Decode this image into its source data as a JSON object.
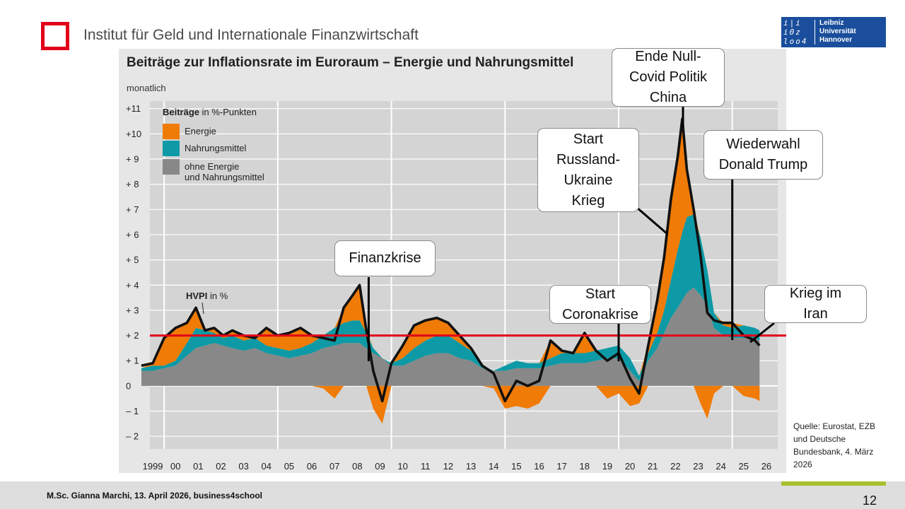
{
  "header": {
    "institute": "Institut für Geld und Internationale Finanzwirtschaft",
    "university_logo": {
      "line1": "Leibniz",
      "line2": "Universität",
      "line3": "Hannover"
    }
  },
  "colors": {
    "energy": "#f07b06",
    "food": "#0d9aa6",
    "core": "#888888",
    "hvpi": "#111111",
    "target_line": "#e2001a",
    "plot_bg": "#d4d4d4",
    "brand_red": "#e2001a",
    "brand_blue": "#1a4e9c",
    "accent_green": "#a8c02d"
  },
  "chart_data": {
    "type": "area",
    "title": "Beiträge zur Inflationsrate im Euroraum – Energie und Nahrungsmittel",
    "subtitle": "monatlich",
    "ylim": [
      -2.5,
      11.3
    ],
    "yticks": [
      {
        "v": 11,
        "label": "+11"
      },
      {
        "v": 10,
        "label": "+10"
      },
      {
        "v": 9,
        "label": "+ 9"
      },
      {
        "v": 8,
        "label": "+ 8"
      },
      {
        "v": 7,
        "label": "+ 7"
      },
      {
        "v": 6,
        "label": "+ 6"
      },
      {
        "v": 5,
        "label": "+ 5"
      },
      {
        "v": 4,
        "label": "+ 4"
      },
      {
        "v": 3,
        "label": "+ 3"
      },
      {
        "v": 2,
        "label": "+ 2"
      },
      {
        "v": 1,
        "label": "+ 1"
      },
      {
        "v": 0,
        "label": "0"
      },
      {
        "v": -1,
        "label": "– 1"
      },
      {
        "v": -2,
        "label": "– 2"
      }
    ],
    "xlim": [
      1999,
      2027
    ],
    "xticks": [
      "1999",
      "00",
      "01",
      "02",
      "03",
      "04",
      "05",
      "06",
      "07",
      "08",
      "09",
      "10",
      "11",
      "12",
      "13",
      "14",
      "15",
      "16",
      "17",
      "18",
      "19",
      "20",
      "21",
      "22",
      "23",
      "24",
      "25",
      "26"
    ],
    "x_gridlines": [
      2000,
      2005,
      2010,
      2015,
      2020,
      2025
    ],
    "legend": {
      "title": "Beiträge",
      "title_unit": "in %-Punkten",
      "items": [
        {
          "key": "energy",
          "label": "Energie"
        },
        {
          "key": "food",
          "label": "Nahrungsmittel"
        },
        {
          "key": "core",
          "label": "ohne Energie\nund Nahrungsmittel"
        }
      ],
      "position": "top-left"
    },
    "hvpi_label": "HVPI",
    "hvpi_unit": "in %",
    "target_line": {
      "value": 2
    },
    "series": {
      "t": [
        1999.0,
        1999.5,
        2000.0,
        2000.5,
        2001.0,
        2001.4,
        2001.8,
        2002.2,
        2002.6,
        2003.0,
        2003.5,
        2004.0,
        2004.5,
        2005.0,
        2005.5,
        2006.0,
        2006.5,
        2007.0,
        2007.5,
        2007.9,
        2008.3,
        2008.6,
        2008.9,
        2009.2,
        2009.6,
        2010.0,
        2010.5,
        2011.0,
        2011.5,
        2012.0,
        2012.5,
        2013.0,
        2013.5,
        2014.0,
        2014.5,
        2015.0,
        2015.5,
        2016.0,
        2016.5,
        2017.0,
        2017.5,
        2018.0,
        2018.5,
        2019.0,
        2019.5,
        2020.0,
        2020.5,
        2020.9,
        2021.3,
        2021.7,
        2022.0,
        2022.3,
        2022.6,
        2022.8,
        2023.0,
        2023.3,
        2023.6,
        2023.9,
        2024.2,
        2024.6,
        2025.0,
        2025.5,
        2026.0,
        2026.2
      ],
      "hvpi": [
        0.8,
        0.9,
        1.9,
        2.3,
        2.5,
        3.1,
        2.2,
        2.3,
        2.0,
        2.2,
        2.0,
        1.9,
        2.3,
        2.0,
        2.1,
        2.3,
        2.0,
        1.9,
        1.8,
        3.1,
        3.6,
        4.0,
        2.2,
        0.6,
        -0.6,
        0.9,
        1.6,
        2.4,
        2.6,
        2.7,
        2.5,
        2.0,
        1.5,
        0.8,
        0.5,
        -0.6,
        0.2,
        0.0,
        0.2,
        1.8,
        1.4,
        1.3,
        2.1,
        1.4,
        1.0,
        1.3,
        0.3,
        -0.3,
        1.6,
        3.4,
        5.1,
        7.4,
        9.1,
        10.6,
        8.6,
        7.0,
        5.2,
        2.9,
        2.6,
        2.5,
        2.5,
        2.0,
        1.8,
        1.6
      ],
      "core": [
        0.6,
        0.6,
        0.7,
        0.8,
        1.2,
        1.5,
        1.6,
        1.7,
        1.6,
        1.5,
        1.4,
        1.5,
        1.3,
        1.2,
        1.1,
        1.2,
        1.3,
        1.5,
        1.6,
        1.7,
        1.7,
        1.7,
        1.5,
        1.3,
        1.1,
        0.8,
        0.8,
        1.0,
        1.2,
        1.3,
        1.3,
        1.1,
        1.0,
        0.7,
        0.6,
        0.6,
        0.7,
        0.7,
        0.7,
        0.8,
        0.9,
        0.9,
        0.9,
        1.0,
        1.1,
        1.1,
        0.6,
        0.2,
        1.0,
        1.5,
        2.1,
        2.7,
        3.1,
        3.4,
        3.7,
        3.9,
        3.6,
        3.2,
        2.3,
        2.0,
        1.9,
        1.9,
        1.9,
        1.8
      ],
      "food": [
        0.1,
        0.2,
        0.1,
        0.2,
        0.5,
        0.8,
        0.6,
        0.4,
        0.3,
        0.5,
        0.4,
        0.4,
        0.3,
        0.3,
        0.3,
        0.3,
        0.4,
        0.5,
        0.7,
        0.8,
        0.9,
        0.9,
        0.6,
        0.2,
        0.0,
        0.1,
        0.3,
        0.5,
        0.6,
        0.7,
        0.7,
        0.6,
        0.4,
        0.1,
        0.0,
        0.2,
        0.3,
        0.2,
        0.2,
        0.3,
        0.4,
        0.4,
        0.4,
        0.4,
        0.4,
        0.5,
        0.5,
        0.2,
        0.3,
        0.6,
        0.9,
        1.5,
        2.3,
        2.7,
        3.0,
        2.9,
        2.3,
        1.4,
        0.6,
        0.4,
        0.4,
        0.5,
        0.4,
        0.4
      ],
      "energy": [
        0.0,
        0.1,
        1.1,
        1.3,
        0.8,
        0.8,
        0.0,
        0.2,
        0.1,
        0.2,
        0.2,
        0.0,
        0.7,
        0.5,
        0.7,
        0.8,
        0.3,
        -0.1,
        -0.5,
        0.6,
        1.0,
        1.4,
        0.1,
        -0.9,
        -1.5,
        0.0,
        0.5,
        0.9,
        0.8,
        0.7,
        0.5,
        0.3,
        0.1,
        0.0,
        -0.1,
        -0.9,
        -0.8,
        -0.9,
        -0.7,
        0.7,
        0.1,
        0.0,
        0.8,
        0.0,
        -0.5,
        -0.3,
        -0.8,
        -0.7,
        0.3,
        1.3,
        2.1,
        3.2,
        3.7,
        4.5,
        1.9,
        0.2,
        -0.7,
        -1.3,
        -0.3,
        0.1,
        0.2,
        -0.4,
        -0.5,
        -0.6
      ]
    },
    "annotations": [
      {
        "key": "finanzkrise",
        "text": "Finanzkrise",
        "x": 2009.0
      },
      {
        "key": "corona",
        "text": "Start\nCoronakrise",
        "x": 2020.0
      },
      {
        "key": "russland",
        "text": "Start\nRussland-\nUkraine\nKrieg",
        "x": 2022.1,
        "y": 7.0
      },
      {
        "key": "nullcovid",
        "text": "Ende Null-\nCovid Politik\nChina",
        "x": 2022.7
      },
      {
        "key": "trump",
        "text": "Wiederwahl\nDonald Trump",
        "x": 2025.0
      },
      {
        "key": "iran",
        "text": "Krieg im\nIran",
        "x": 2026.0,
        "y": 2.2
      }
    ]
  },
  "source": "Quelle: Eurostat, EZB\nund Deutsche\nBundesbank, 4. März\n2026",
  "footer": {
    "author": "M.Sc. Gianna Marchi, 13. April 2026, business4school",
    "page": "12"
  }
}
